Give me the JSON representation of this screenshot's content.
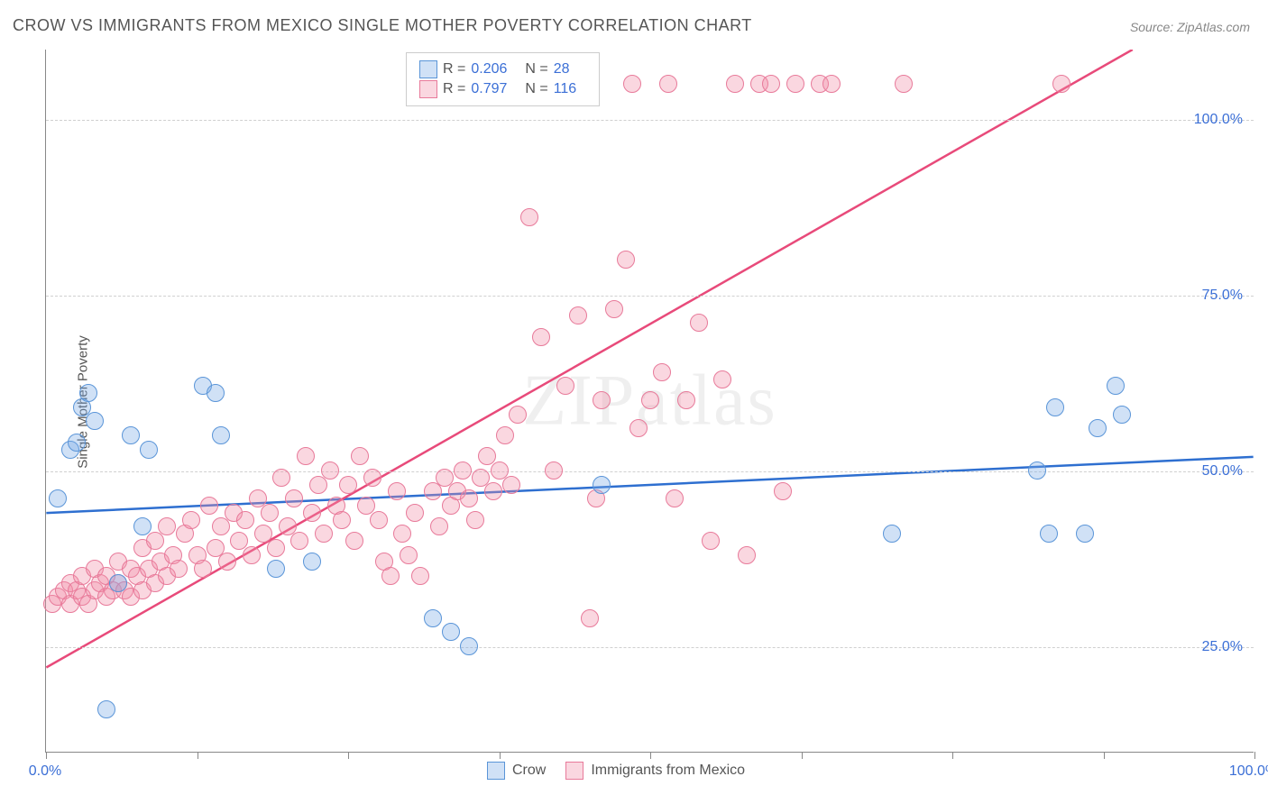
{
  "title": "CROW VS IMMIGRANTS FROM MEXICO SINGLE MOTHER POVERTY CORRELATION CHART",
  "source": "Source: ZipAtlas.com",
  "ylabel": "Single Mother Poverty",
  "watermark": "ZIPatlas",
  "plot": {
    "type": "scatter",
    "xlim": [
      0,
      100
    ],
    "ylim": [
      10,
      110
    ],
    "background_color": "#ffffff",
    "grid_color": "#d0d0d0",
    "marker_radius": 10,
    "marker_border_width": 1.5,
    "line_width": 2.5,
    "yticks": [
      25,
      50,
      75,
      100
    ],
    "ytick_labels": [
      "25.0%",
      "50.0%",
      "75.0%",
      "100.0%"
    ],
    "xticks_minor": [
      0,
      12.5,
      25,
      37.5,
      50,
      62.5,
      75,
      87.5,
      100
    ],
    "xtick_labels": {
      "0": "0.0%",
      "100": "100.0%"
    }
  },
  "series": {
    "blue": {
      "label": "Crow",
      "stats": {
        "R": "0.206",
        "N": "28"
      },
      "fill": "rgba(120,170,230,0.35)",
      "stroke": "#5a95d8",
      "line_color": "#2e6fd0",
      "trend": {
        "x1": 0,
        "y1": 44,
        "x2": 100,
        "y2": 52
      },
      "points": [
        [
          1,
          46
        ],
        [
          2,
          53
        ],
        [
          2.5,
          54
        ],
        [
          3,
          59
        ],
        [
          3.5,
          61
        ],
        [
          4,
          57
        ],
        [
          5,
          16
        ],
        [
          6,
          34
        ],
        [
          7,
          55
        ],
        [
          8,
          42
        ],
        [
          8.5,
          53
        ],
        [
          13,
          62
        ],
        [
          14,
          61
        ],
        [
          14.5,
          55
        ],
        [
          19,
          36
        ],
        [
          22,
          37
        ],
        [
          32,
          29
        ],
        [
          33.5,
          27
        ],
        [
          35,
          25
        ],
        [
          46,
          48
        ],
        [
          70,
          41
        ],
        [
          82,
          50
        ],
        [
          83,
          41
        ],
        [
          83.5,
          59
        ],
        [
          86,
          41
        ],
        [
          87,
          56
        ],
        [
          88.5,
          62
        ],
        [
          89,
          58
        ]
      ]
    },
    "pink": {
      "label": "Immigrants from Mexico",
      "stats": {
        "R": "0.797",
        "N": "116"
      },
      "fill": "rgba(240,140,165,0.35)",
      "stroke": "#e87a9a",
      "line_color": "#e84a7a",
      "trend": {
        "x1": 0,
        "y1": 22,
        "x2": 90,
        "y2": 110
      },
      "points": [
        [
          0.5,
          31
        ],
        [
          1,
          32
        ],
        [
          1.5,
          33
        ],
        [
          2,
          34
        ],
        [
          2,
          31
        ],
        [
          2.5,
          33
        ],
        [
          3,
          32
        ],
        [
          3,
          35
        ],
        [
          3.5,
          31
        ],
        [
          4,
          33
        ],
        [
          4,
          36
        ],
        [
          4.5,
          34
        ],
        [
          5,
          32
        ],
        [
          5,
          35
        ],
        [
          5.5,
          33
        ],
        [
          6,
          34
        ],
        [
          6,
          37
        ],
        [
          6.5,
          33
        ],
        [
          7,
          36
        ],
        [
          7,
          32
        ],
        [
          7.5,
          35
        ],
        [
          8,
          33
        ],
        [
          8,
          39
        ],
        [
          8.5,
          36
        ],
        [
          9,
          34
        ],
        [
          9,
          40
        ],
        [
          9.5,
          37
        ],
        [
          10,
          35
        ],
        [
          10,
          42
        ],
        [
          10.5,
          38
        ],
        [
          11,
          36
        ],
        [
          11.5,
          41
        ],
        [
          12,
          43
        ],
        [
          12.5,
          38
        ],
        [
          13,
          36
        ],
        [
          13.5,
          45
        ],
        [
          14,
          39
        ],
        [
          14.5,
          42
        ],
        [
          15,
          37
        ],
        [
          15.5,
          44
        ],
        [
          16,
          40
        ],
        [
          16.5,
          43
        ],
        [
          17,
          38
        ],
        [
          17.5,
          46
        ],
        [
          18,
          41
        ],
        [
          18.5,
          44
        ],
        [
          19,
          39
        ],
        [
          19.5,
          49
        ],
        [
          20,
          42
        ],
        [
          20.5,
          46
        ],
        [
          21,
          40
        ],
        [
          21.5,
          52
        ],
        [
          22,
          44
        ],
        [
          22.5,
          48
        ],
        [
          23,
          41
        ],
        [
          23.5,
          50
        ],
        [
          24,
          45
        ],
        [
          24.5,
          43
        ],
        [
          25,
          48
        ],
        [
          25.5,
          40
        ],
        [
          26,
          52
        ],
        [
          26.5,
          45
        ],
        [
          27,
          49
        ],
        [
          27.5,
          43
        ],
        [
          28,
          37
        ],
        [
          28.5,
          35
        ],
        [
          29,
          47
        ],
        [
          29.5,
          41
        ],
        [
          30,
          38
        ],
        [
          30.5,
          44
        ],
        [
          31,
          35
        ],
        [
          32,
          47
        ],
        [
          32.5,
          42
        ],
        [
          33,
          49
        ],
        [
          33.5,
          45
        ],
        [
          34,
          47
        ],
        [
          34.5,
          50
        ],
        [
          35,
          46
        ],
        [
          35.5,
          43
        ],
        [
          36,
          49
        ],
        [
          36.5,
          52
        ],
        [
          37,
          47
        ],
        [
          37.5,
          50
        ],
        [
          38,
          55
        ],
        [
          38.5,
          48
        ],
        [
          39,
          58
        ],
        [
          40,
          86
        ],
        [
          41,
          69
        ],
        [
          42,
          50
        ],
        [
          43,
          62
        ],
        [
          44,
          72
        ],
        [
          45,
          29
        ],
        [
          45.5,
          46
        ],
        [
          46,
          60
        ],
        [
          47,
          73
        ],
        [
          48,
          80
        ],
        [
          48.5,
          105
        ],
        [
          49,
          56
        ],
        [
          50,
          60
        ],
        [
          51,
          64
        ],
        [
          51.5,
          105
        ],
        [
          52,
          46
        ],
        [
          53,
          60
        ],
        [
          54,
          71
        ],
        [
          55,
          40
        ],
        [
          56,
          63
        ],
        [
          57,
          105
        ],
        [
          58,
          38
        ],
        [
          59,
          105
        ],
        [
          60,
          105
        ],
        [
          61,
          47
        ],
        [
          62,
          105
        ],
        [
          64,
          105
        ],
        [
          65,
          105
        ],
        [
          71,
          105
        ],
        [
          84,
          105
        ]
      ]
    }
  },
  "legend_top": {
    "r_label": "R =",
    "n_label": "N ="
  },
  "legend_bottom": {
    "items": [
      "blue",
      "pink"
    ]
  }
}
